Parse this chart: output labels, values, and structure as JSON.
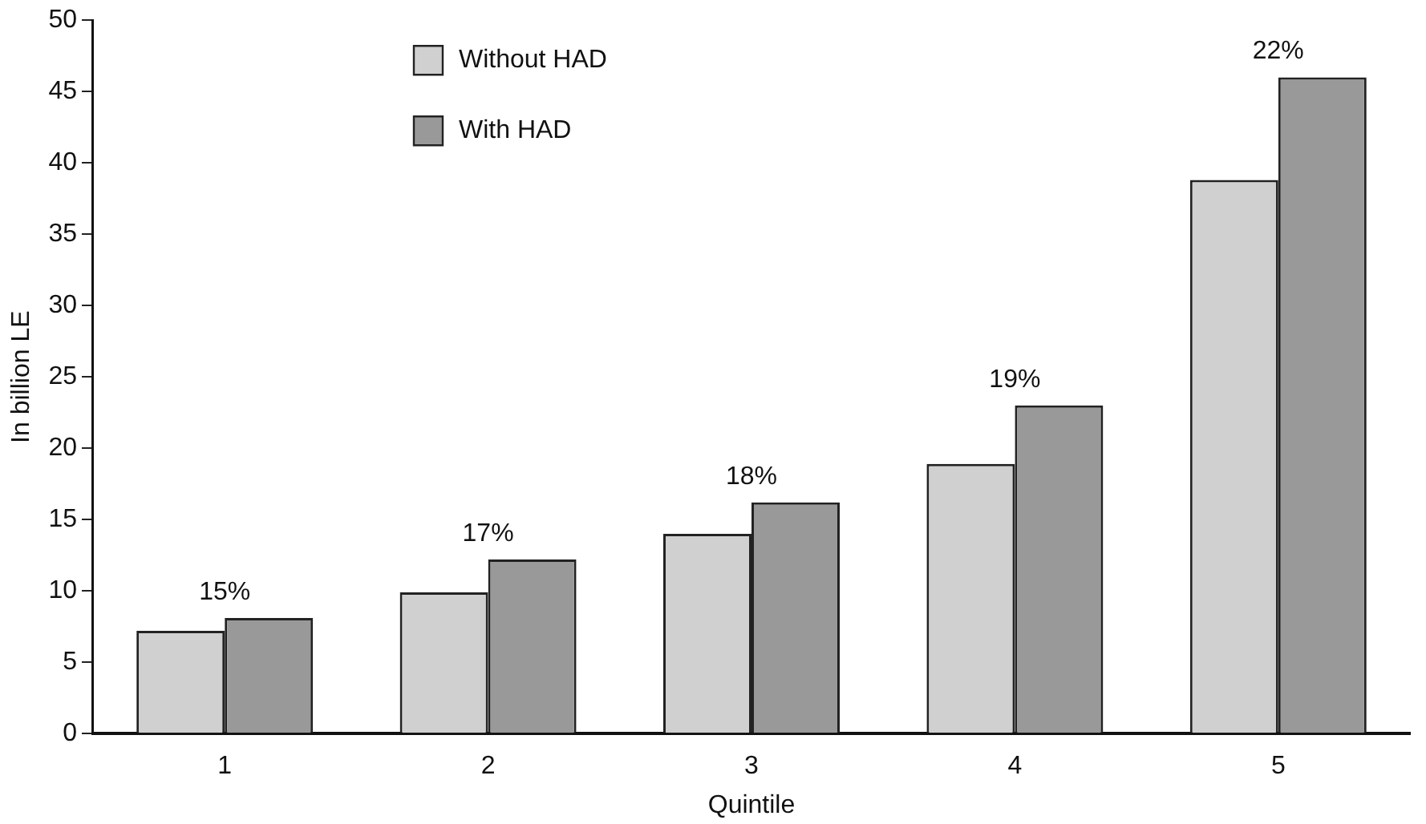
{
  "chart_data": {
    "type": "bar",
    "xlabel": "Quintile",
    "ylabel": "In billion LE",
    "categories": [
      "1",
      "2",
      "3",
      "4",
      "5"
    ],
    "series": [
      {
        "name": "Without HAD",
        "color": "#d0d0d0",
        "values": [
          7.2,
          9.9,
          14.0,
          18.9,
          38.8
        ]
      },
      {
        "name": "With HAD",
        "color": "#999999",
        "values": [
          8.1,
          12.2,
          16.2,
          23.0,
          46.0
        ]
      }
    ],
    "ylim": [
      0,
      50
    ],
    "yticks": [
      0,
      5,
      10,
      15,
      20,
      25,
      30,
      35,
      40,
      45,
      50
    ],
    "grid": false,
    "legend": "top left",
    "annotations": [
      {
        "text": "15%",
        "x": "1",
        "y": 8.1
      },
      {
        "text": "17%",
        "x": "2",
        "y": 12.2
      },
      {
        "text": "18%",
        "x": "3",
        "y": 16.2
      },
      {
        "text": "19%",
        "x": "4",
        "y": 23.0
      },
      {
        "text": "22%",
        "x": "5",
        "y": 46.0
      }
    ]
  }
}
